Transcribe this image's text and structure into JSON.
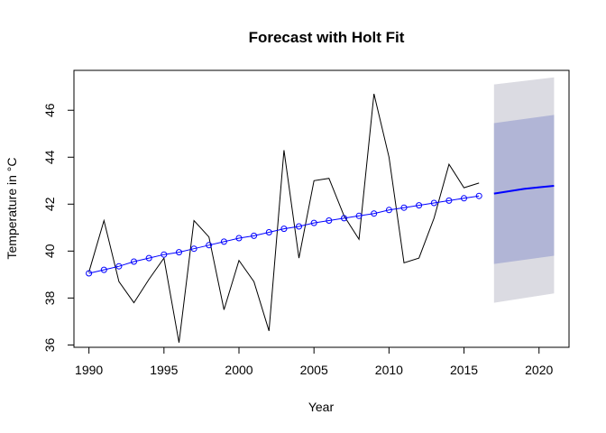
{
  "chart_data": {
    "type": "line",
    "title": "Forecast with Holt Fit",
    "xlabel": "Year",
    "ylabel": "Temperature in °C",
    "xlim": [
      1989,
      2022
    ],
    "ylim": [
      35.9,
      47.7
    ],
    "x_ticks": [
      "1990",
      "1995",
      "2000",
      "2005",
      "2010",
      "2015",
      "2020"
    ],
    "y_ticks": [
      "36",
      "38",
      "40",
      "42",
      "44",
      "46"
    ],
    "grid": false,
    "legend": "none",
    "series": [
      {
        "role": "observed",
        "color": "#000000",
        "x": [
          1990,
          1991,
          1992,
          1993,
          1994,
          1995,
          1996,
          1997,
          1998,
          1999,
          2000,
          2001,
          2002,
          2003,
          2004,
          2005,
          2006,
          2007,
          2008,
          2009,
          2010,
          2011,
          2012,
          2013,
          2014,
          2015,
          2016
        ],
        "y": [
          39.1,
          41.3,
          38.7,
          37.8,
          38.8,
          39.7,
          36.1,
          41.3,
          40.6,
          37.5,
          39.6,
          38.7,
          36.6,
          44.3,
          39.7,
          43.0,
          43.1,
          41.5,
          40.5,
          46.7,
          44.0,
          39.5,
          39.7,
          41.4,
          43.7,
          42.7,
          42.9
        ]
      },
      {
        "role": "fitted",
        "color": "#0000ff",
        "x": [
          1990,
          1991,
          1992,
          1993,
          1994,
          1995,
          1996,
          1997,
          1998,
          1999,
          2000,
          2001,
          2002,
          2003,
          2004,
          2005,
          2006,
          2007,
          2008,
          2009,
          2010,
          2011,
          2012,
          2013,
          2014,
          2015,
          2016
        ],
        "y": [
          39.05,
          39.2,
          39.35,
          39.55,
          39.7,
          39.85,
          39.95,
          40.1,
          40.25,
          40.4,
          40.55,
          40.65,
          40.8,
          40.95,
          41.05,
          41.2,
          41.3,
          41.4,
          41.5,
          41.6,
          41.75,
          41.85,
          41.95,
          42.05,
          42.15,
          42.25,
          42.35
        ]
      },
      {
        "role": "forecast",
        "color": "#0000ff",
        "x": [
          2017,
          2018,
          2019,
          2020,
          2021
        ],
        "y": [
          42.45,
          42.55,
          42.65,
          42.72,
          42.78
        ]
      }
    ],
    "intervals": [
      {
        "level": 95,
        "color": "#dbdbe2",
        "x": [
          2017,
          2021
        ],
        "lower": [
          37.8,
          38.2
        ],
        "upper": [
          47.1,
          47.4
        ]
      },
      {
        "level": 80,
        "color": "#b1b5d6",
        "x": [
          2017,
          2021
        ],
        "lower": [
          39.45,
          39.8
        ],
        "upper": [
          45.45,
          45.8
        ]
      }
    ]
  }
}
